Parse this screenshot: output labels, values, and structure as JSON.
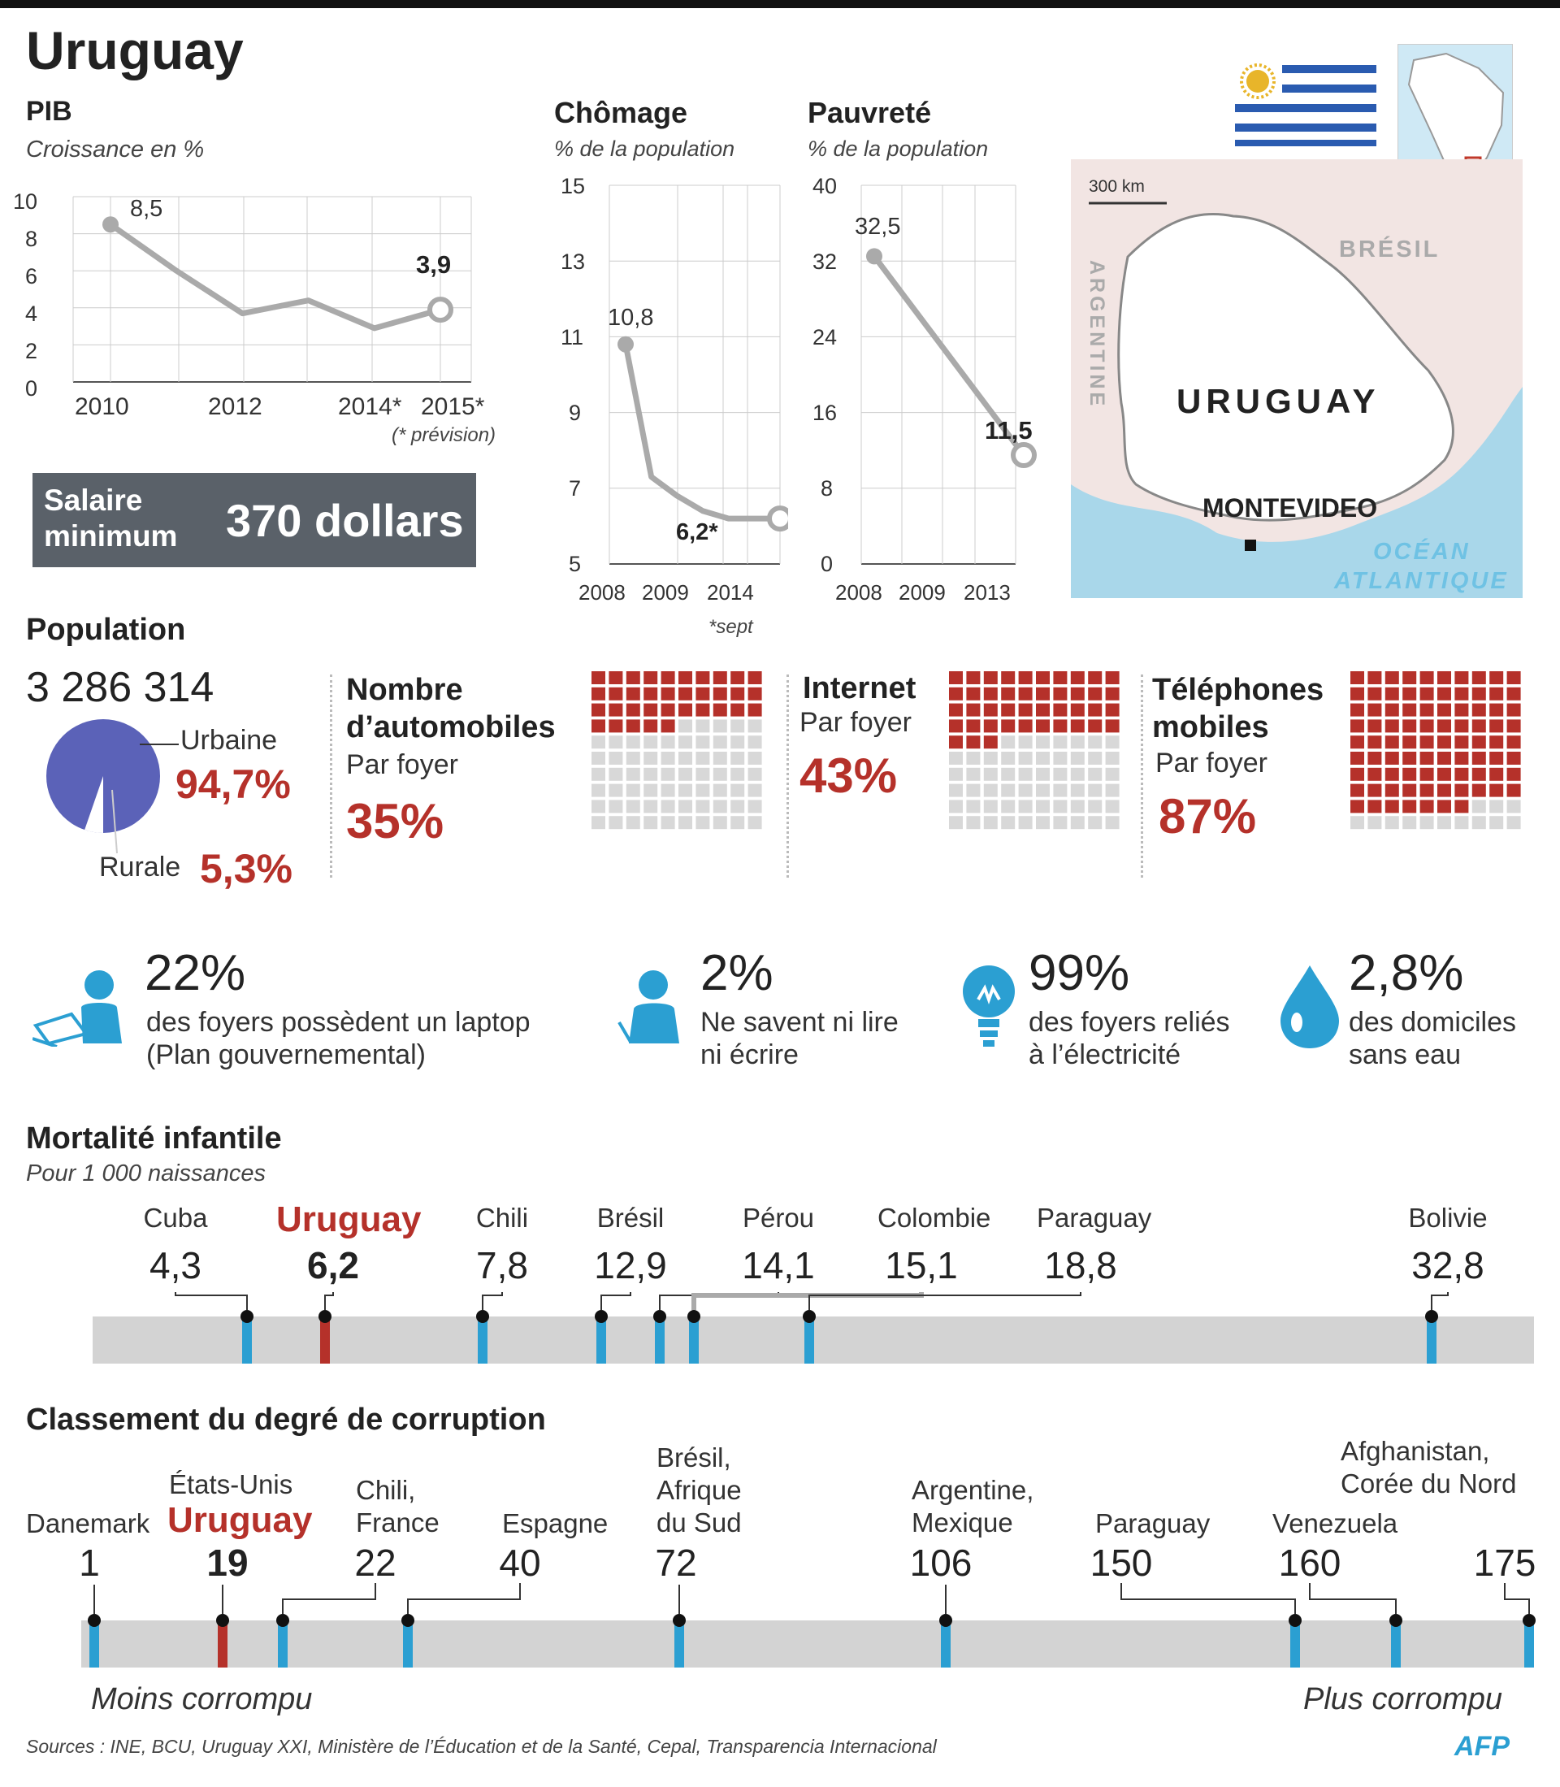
{
  "title": "Uruguay",
  "pib": {
    "title": "PIB",
    "subtitle": "Croissance en %",
    "yticks": [
      "10",
      "8",
      "6",
      "4",
      "2",
      "0"
    ],
    "xticks": [
      "2010",
      "2012",
      "2014*",
      "2015*"
    ],
    "note": "(* prévision)",
    "label_first": "8,5",
    "label_last": "3,9"
  },
  "chomage": {
    "title": "Chômage",
    "subtitle": "% de la population",
    "yticks": [
      "15",
      "13",
      "11",
      "9",
      "7",
      "5"
    ],
    "xticks": [
      "2008",
      "2009",
      "2014"
    ],
    "label_first": "10,8",
    "label_last": "6,2*",
    "note": "*sept"
  },
  "pauvrete": {
    "title": "Pauvreté",
    "subtitle": "% de la population",
    "yticks": [
      "40",
      "32",
      "24",
      "16",
      "8",
      "0"
    ],
    "xticks": [
      "2008",
      "2009",
      "2013"
    ],
    "label_first": "32,5",
    "label_last": "11,5"
  },
  "salaire": {
    "label_line1": "Salaire",
    "label_line2": "minimum",
    "value": "370 dollars"
  },
  "map": {
    "scale": "300 km",
    "bresil": "BRÉSIL",
    "argentine": "ARGENTINE",
    "uruguay": "URUGUAY",
    "montevideo": "MONTEVIDEO",
    "ocean_line1": "OCÉAN",
    "ocean_line2": "ATLANTIQUE"
  },
  "population": {
    "title": "Population",
    "total": "3 286 314",
    "urban_label": "Urbaine",
    "urban_pct": "94,7%",
    "rural_label": "Rurale",
    "rural_pct": "5,3%",
    "pie_color": "#5b62b8"
  },
  "waffles": [
    {
      "title_line1": "Nombre",
      "title_line2": "d’automobiles",
      "sub": "Par foyer",
      "pct": "35%",
      "value": 35
    },
    {
      "title_line1": "Internet",
      "title_line2": "",
      "sub": "Par foyer",
      "pct": "43%",
      "value": 43
    },
    {
      "title_line1": "Téléphones",
      "title_line2": "mobiles",
      "sub": "Par foyer",
      "pct": "87%",
      "value": 87
    }
  ],
  "icons": [
    {
      "icon": "person-laptop-icon",
      "pct": "22%",
      "line1": "des foyers possèdent un laptop",
      "line2": "(Plan gouvernemental)"
    },
    {
      "icon": "person-reading-icon",
      "pct": "2%",
      "line1": "Ne savent ni lire",
      "line2": "ni écrire"
    },
    {
      "icon": "lightbulb-icon",
      "pct": "99%",
      "line1": "des foyers reliés",
      "line2": "à l’électricité"
    },
    {
      "icon": "water-drop-icon",
      "pct": "2,8%",
      "line1": "des domiciles",
      "line2": "sans eau"
    }
  ],
  "mortalite": {
    "title": "Mortalité infantile",
    "subtitle": "Pour 1 000 naissances"
  },
  "corruption": {
    "title": "Classement du degré de corruption",
    "less": "Moins corrompu",
    "more": "Plus corrompu",
    "labels": {
      "danemark": "Danemark",
      "etats_unis": "États-Unis",
      "uruguay": "Uruguay",
      "chili_line1": "Chili,",
      "chili_line2": "France",
      "espagne": "Espagne",
      "bresil_line1": "Brésil,",
      "bresil_line2": "Afrique",
      "bresil_line3": "du Sud",
      "argentine_line1": "Argentine,",
      "argentine_line2": "Mexique",
      "paraguay": "Paraguay",
      "venezuela": "Venezuela",
      "afgha_line1": "Afghanistan,",
      "afgha_line2": "Corée du Nord"
    }
  },
  "sources": "Sources : INE, BCU, Uruguay XXI, Ministère de l’Éducation et de la Santé, Cepal, Transparencia Internacional",
  "credit": "AFP",
  "colors": {
    "accent_red": "#b5312a",
    "tick_blue": "#2b9fd2",
    "grey": "#bdbdbd",
    "line_grey": "#aaaaaa"
  },
  "chart_data": [
    {
      "type": "line",
      "title": "PIB",
      "subtitle": "Croissance en %",
      "x": [
        "2010",
        "2011",
        "2012",
        "2013",
        "2014*",
        "2015*"
      ],
      "values": [
        8.5,
        6.0,
        3.7,
        4.4,
        2.9,
        3.9
      ],
      "ylim": [
        0,
        10
      ]
    },
    {
      "type": "line",
      "title": "Chômage",
      "subtitle": "% de la population",
      "x": [
        2008,
        2009,
        2010,
        2011,
        2012,
        2013,
        2014
      ],
      "values": [
        10.8,
        7.3,
        6.8,
        6.4,
        6.2,
        6.2,
        6.2
      ],
      "ylim": [
        5,
        15
      ]
    },
    {
      "type": "line",
      "title": "Pauvreté",
      "subtitle": "% de la population",
      "x": [
        2008,
        2013
      ],
      "values": [
        32.5,
        11.5
      ],
      "ylim": [
        0,
        40
      ]
    },
    {
      "type": "pie",
      "title": "Population",
      "categories": [
        "Urbaine",
        "Rurale"
      ],
      "values": [
        94.7,
        5.3
      ]
    },
    {
      "type": "scatter",
      "title": "Mortalité infantile",
      "subtitle": "Pour 1 000 naissances",
      "points": [
        {
          "name": "Cuba",
          "label": "4,3",
          "value": 4.3
        },
        {
          "name": "Uruguay",
          "label": "6,2",
          "value": 6.2,
          "highlight": true
        },
        {
          "name": "Chili",
          "label": "7,8",
          "value": 7.8
        },
        {
          "name": "Brésil",
          "label": "12,9",
          "value": 12.9
        },
        {
          "name": "Pérou",
          "label": "14,1",
          "value": 14.1
        },
        {
          "name": "Colombie",
          "label": "15,1",
          "value": 15.1
        },
        {
          "name": "Paraguay",
          "label": "18,8",
          "value": 18.8
        },
        {
          "name": "Bolivie",
          "label": "32,8",
          "value": 32.8
        }
      ]
    },
    {
      "type": "scatter",
      "title": "Classement du degré de corruption",
      "points": [
        {
          "label": "1",
          "value": 1
        },
        {
          "label": "19",
          "value": 19,
          "highlight": true
        },
        {
          "label": "22",
          "value": 22
        },
        {
          "label": "40",
          "value": 40
        },
        {
          "label": "72",
          "value": 72
        },
        {
          "label": "106",
          "value": 106
        },
        {
          "label": "150",
          "value": 150
        },
        {
          "label": "160",
          "value": 160
        },
        {
          "label": "175",
          "value": 175
        }
      ]
    }
  ]
}
